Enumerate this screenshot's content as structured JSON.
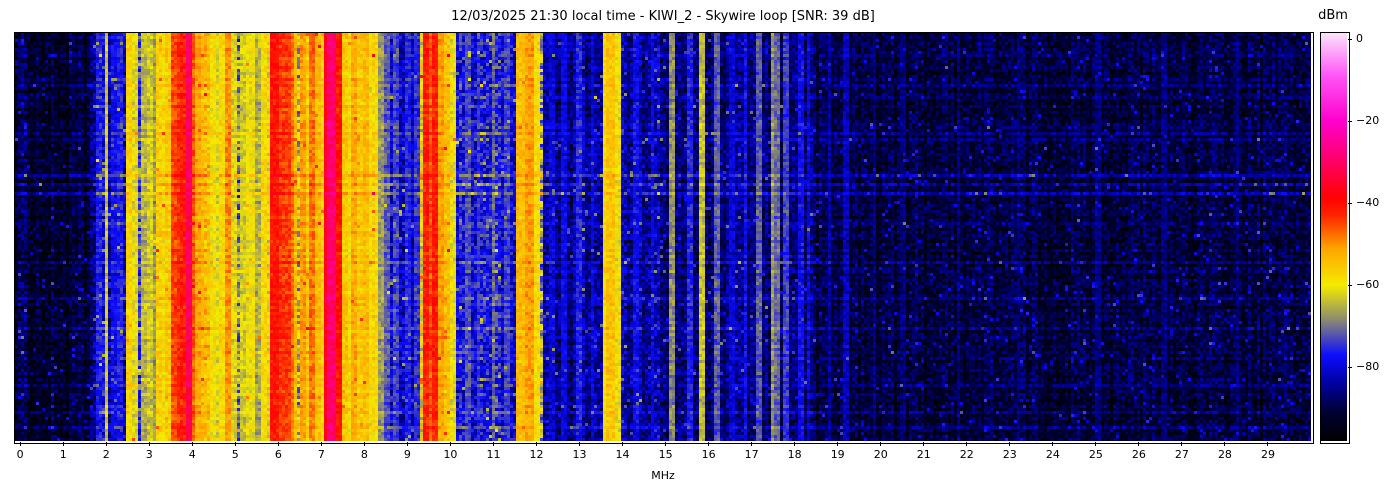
{
  "figure": {
    "background": "#ffffff",
    "axis_color": "#000000"
  },
  "chart_data": {
    "type": "heatmap",
    "subtype": "radio-spectrogram-waterfall",
    "title": "12/03/2025 21:30 local time - KIWI_2 - Skywire loop [SNR: 39 dB]",
    "xlabel": "MHz",
    "ylabel": "",
    "colorbar_label": "dBm",
    "x_range": [
      -0.12,
      30.0
    ],
    "x_tick_values": [
      0,
      1,
      2,
      3,
      4,
      5,
      6,
      7,
      8,
      9,
      10,
      11,
      12,
      13,
      14,
      15,
      16,
      17,
      18,
      19,
      20,
      21,
      22,
      23,
      24,
      25,
      26,
      27,
      28,
      29
    ],
    "x_tick_labels": [
      "0",
      "1",
      "2",
      "3",
      "4",
      "5",
      "6",
      "7",
      "8",
      "9",
      "10",
      "11",
      "12",
      "13",
      "14",
      "15",
      "16",
      "17",
      "18",
      "19",
      "20",
      "21",
      "22",
      "23",
      "24",
      "25",
      "26",
      "27",
      "28",
      "29"
    ],
    "value_range": [
      -98,
      1.5
    ],
    "colorbar_tick_values": [
      0,
      -20,
      -40,
      -60,
      -80
    ],
    "colorbar_tick_labels": [
      "0",
      "−20",
      "−40",
      "−60",
      "−80"
    ],
    "grid_on": false,
    "colormap": [
      [
        -98,
        "#000000"
      ],
      [
        -91,
        "#000032"
      ],
      [
        -84,
        "#0000a0"
      ],
      [
        -77,
        "#0e0eff"
      ],
      [
        -68.5,
        "#8a8a72"
      ],
      [
        -60,
        "#f4ec00"
      ],
      [
        -51,
        "#ffa400"
      ],
      [
        -43,
        "#ff2400"
      ],
      [
        -39,
        "#ff0400"
      ],
      [
        -30,
        "#ff0063"
      ],
      [
        -20,
        "#ff00cd"
      ],
      [
        -9,
        "#ff55f7"
      ],
      [
        1.5,
        "#fbe5fb"
      ]
    ],
    "grid": {
      "cols": 432,
      "rows": 136,
      "cell": 3
    },
    "noise": {
      "seed": 1234,
      "col_jitter": 2.5,
      "row_jitter": 1.5,
      "spike_p": 0.05,
      "spike_min": 6,
      "spike_max": 14
    },
    "segments": [
      [
        -0.12,
        0.25,
        -90,
        5
      ],
      [
        0.25,
        1.62,
        -92,
        4.5
      ],
      [
        1.62,
        1.78,
        -85,
        6
      ],
      [
        1.78,
        2.48,
        -81,
        7
      ],
      [
        2.48,
        2.72,
        -68,
        9
      ],
      [
        2.72,
        3.18,
        -76,
        8
      ],
      [
        3.18,
        3.52,
        -62,
        8
      ],
      [
        3.52,
        4.08,
        -53,
        7
      ],
      [
        4.08,
        4.38,
        -59,
        8
      ],
      [
        4.38,
        5.12,
        -71,
        9
      ],
      [
        5.12,
        5.82,
        -71,
        9
      ],
      [
        5.82,
        6.42,
        -60,
        8
      ],
      [
        6.42,
        7.08,
        -64,
        9
      ],
      [
        7.08,
        7.46,
        -47,
        6
      ],
      [
        7.46,
        8.28,
        -64,
        9
      ],
      [
        8.28,
        8.78,
        -78,
        7
      ],
      [
        8.78,
        9.32,
        -82,
        6
      ],
      [
        9.32,
        9.96,
        -61,
        8
      ],
      [
        9.96,
        10.16,
        -65,
        8
      ],
      [
        10.16,
        11.58,
        -78,
        6.5
      ],
      [
        11.58,
        12.12,
        -68,
        9
      ],
      [
        12.12,
        13.52,
        -85,
        5.5
      ],
      [
        13.52,
        13.98,
        -73,
        8
      ],
      [
        13.98,
        15.02,
        -84,
        5.5
      ],
      [
        15.02,
        18.52,
        -87,
        5
      ],
      [
        18.52,
        30.1,
        -90.5,
        4.5
      ]
    ],
    "spurs": [
      [
        1.84,
        -77,
        0.02
      ],
      [
        2.0,
        -63,
        0.025
      ],
      [
        2.17,
        -79,
        0.02
      ],
      [
        2.33,
        -77,
        0.02
      ],
      [
        2.55,
        -57,
        0.04
      ],
      [
        2.66,
        -62,
        0.03
      ],
      [
        2.85,
        -65,
        0.03
      ],
      [
        3.0,
        -63,
        0.03
      ],
      [
        3.11,
        -67,
        0.03
      ],
      [
        3.22,
        -57,
        0.04
      ],
      [
        3.33,
        -59,
        0.04
      ],
      [
        3.45,
        -56,
        0.04
      ],
      [
        3.59,
        -45,
        0.04
      ],
      [
        3.7,
        -43,
        0.05
      ],
      [
        3.79,
        -42,
        0.04
      ],
      [
        3.88,
        -44,
        0.04
      ],
      [
        3.94,
        -31,
        0.022
      ],
      [
        4.01,
        -46,
        0.04
      ],
      [
        4.13,
        -52,
        0.04
      ],
      [
        4.22,
        -54,
        0.04
      ],
      [
        4.31,
        -56,
        0.04
      ],
      [
        4.47,
        -59,
        0.04
      ],
      [
        4.6,
        -62,
        0.035
      ],
      [
        4.72,
        -58,
        0.04
      ],
      [
        4.85,
        -50,
        0.04
      ],
      [
        5.0,
        -62,
        0.035
      ],
      [
        5.2,
        -63,
        0.04
      ],
      [
        5.35,
        -60,
        0.04
      ],
      [
        5.5,
        -66,
        0.035
      ],
      [
        5.66,
        -58,
        0.04
      ],
      [
        5.76,
        -62,
        0.035
      ],
      [
        5.9,
        -41,
        0.05
      ],
      [
        6.0,
        -44,
        0.04
      ],
      [
        6.07,
        -52,
        0.035
      ],
      [
        6.18,
        -44,
        0.045
      ],
      [
        6.3,
        -48,
        0.04
      ],
      [
        6.39,
        -54,
        0.035
      ],
      [
        6.55,
        -51,
        0.04
      ],
      [
        6.68,
        -56,
        0.04
      ],
      [
        6.8,
        -48,
        0.045
      ],
      [
        6.92,
        -54,
        0.04
      ],
      [
        7.0,
        -57,
        0.035
      ],
      [
        7.16,
        -36,
        0.04
      ],
      [
        7.23,
        -29,
        0.05
      ],
      [
        7.3,
        -33,
        0.035
      ],
      [
        7.38,
        -41,
        0.04
      ],
      [
        7.55,
        -55,
        0.04
      ],
      [
        7.66,
        -58,
        0.035
      ],
      [
        7.78,
        -52,
        0.04
      ],
      [
        7.9,
        -56,
        0.04
      ],
      [
        8.02,
        -54,
        0.04
      ],
      [
        8.12,
        -60,
        0.035
      ],
      [
        8.22,
        -58,
        0.035
      ],
      [
        8.38,
        -67,
        0.03
      ],
      [
        8.55,
        -72,
        0.03
      ],
      [
        8.75,
        -74,
        0.03
      ],
      [
        9.0,
        -76,
        0.03
      ],
      [
        9.2,
        -75,
        0.03
      ],
      [
        9.42,
        -42,
        0.05
      ],
      [
        9.53,
        -46,
        0.04
      ],
      [
        9.65,
        -42,
        0.05
      ],
      [
        9.78,
        -51,
        0.04
      ],
      [
        9.9,
        -55,
        0.04
      ],
      [
        10.05,
        -61,
        0.045
      ],
      [
        10.4,
        -73,
        0.03
      ],
      [
        10.65,
        -75,
        0.03
      ],
      [
        11.0,
        -71,
        0.03
      ],
      [
        11.3,
        -74,
        0.03
      ],
      [
        11.62,
        -54,
        0.05
      ],
      [
        11.85,
        -51,
        0.07
      ],
      [
        12.02,
        -58,
        0.04
      ],
      [
        12.35,
        -80,
        0.025
      ],
      [
        12.65,
        -79,
        0.025
      ],
      [
        12.97,
        -76,
        0.025
      ],
      [
        13.3,
        -80,
        0.025
      ],
      [
        13.6,
        -58,
        0.04
      ],
      [
        13.72,
        -55,
        0.04
      ],
      [
        13.87,
        -60,
        0.035
      ],
      [
        14.3,
        -78,
        0.025
      ],
      [
        14.7,
        -79,
        0.025
      ],
      [
        15.12,
        -68,
        0.03
      ],
      [
        15.55,
        -76,
        0.025
      ],
      [
        15.82,
        -64,
        0.03
      ],
      [
        16.18,
        -72,
        0.028
      ],
      [
        16.55,
        -80,
        0.025
      ],
      [
        16.85,
        -78,
        0.025
      ],
      [
        17.18,
        -72,
        0.028
      ],
      [
        17.48,
        -68,
        0.028
      ],
      [
        17.6,
        -71,
        0.028
      ],
      [
        17.82,
        -74,
        0.026
      ],
      [
        18.15,
        -78,
        0.025
      ],
      [
        18.32,
        -80,
        0.025
      ],
      [
        18.8,
        -84,
        0.024
      ],
      [
        19.2,
        -82,
        0.024
      ],
      [
        19.85,
        -86,
        0.024
      ],
      [
        20.5,
        -87,
        0.024
      ],
      [
        21.8,
        -86,
        0.024
      ],
      [
        23.2,
        -87,
        0.024
      ],
      [
        25.05,
        -86,
        0.024
      ],
      [
        26.6,
        -87,
        0.024
      ],
      [
        28.3,
        -87,
        0.024
      ]
    ],
    "time_streaks": [
      [
        0.05,
        3
      ],
      [
        0.125,
        5
      ],
      [
        0.159,
        4
      ],
      [
        0.245,
        4
      ],
      [
        0.262,
        5
      ],
      [
        0.35,
        7
      ],
      [
        0.37,
        5
      ],
      [
        0.392,
        8
      ],
      [
        0.47,
        3
      ],
      [
        0.561,
        4
      ],
      [
        0.654,
        4
      ],
      [
        0.728,
        4
      ],
      [
        0.8,
        3
      ],
      [
        0.868,
        4
      ],
      [
        0.936,
        5
      ],
      [
        0.968,
        5
      ]
    ]
  }
}
